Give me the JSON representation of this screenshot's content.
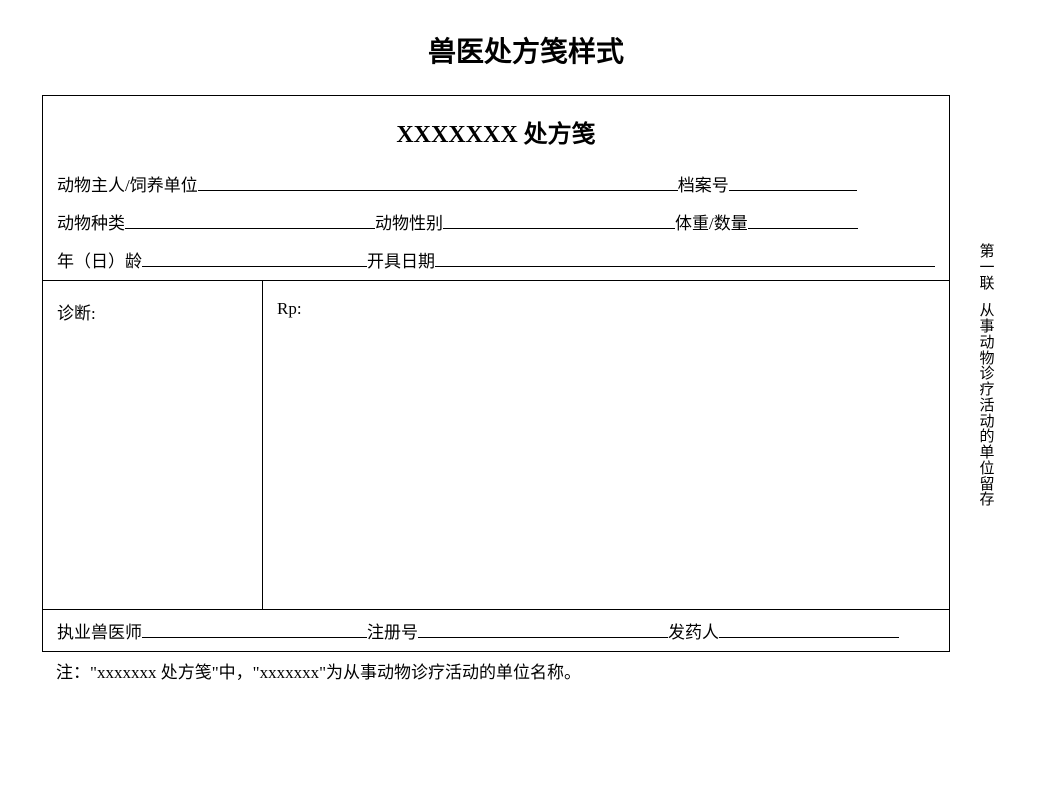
{
  "page_title": "兽医处方笺样式",
  "form_title_prefix": "XXXXXXX",
  "form_title_suffix": " 处方笺",
  "row1": {
    "owner_label": "动物主人/饲养单位",
    "file_no_label": "档案号"
  },
  "row2": {
    "species_label": "动物种类",
    "gender_label": "动物性别",
    "weight_label": "体重/数量"
  },
  "row3": {
    "age_label": "年（日）龄",
    "date_label": "开具日期"
  },
  "middle": {
    "diagnosis_label": "诊断:",
    "rp_label": "Rp:"
  },
  "bottom": {
    "vet_label": "执业兽医师",
    "reg_label": "注册号",
    "dispenser_label": "发药人"
  },
  "footnote": {
    "prefix": "注：\"",
    "x1": "xxxxxxx",
    "mid1": " 处方笺\"中，\"",
    "x2": "xxxxxxx",
    "suffix": "\"为从事动物诊疗活动的单位名称。"
  },
  "side_note": {
    "part1": "第一联",
    "part2": "从事动物诊疗活动的单位留存"
  },
  "styling": {
    "border_color": "#000000",
    "border_width": 1.5,
    "background_color": "#ffffff",
    "title_fontsize": 28,
    "header_fontsize": 24,
    "body_fontsize": 17,
    "side_fontsize": 15,
    "form_width": 908,
    "form_left_margin": 42,
    "middle_height": 330,
    "diagnosis_col_width": 220
  }
}
